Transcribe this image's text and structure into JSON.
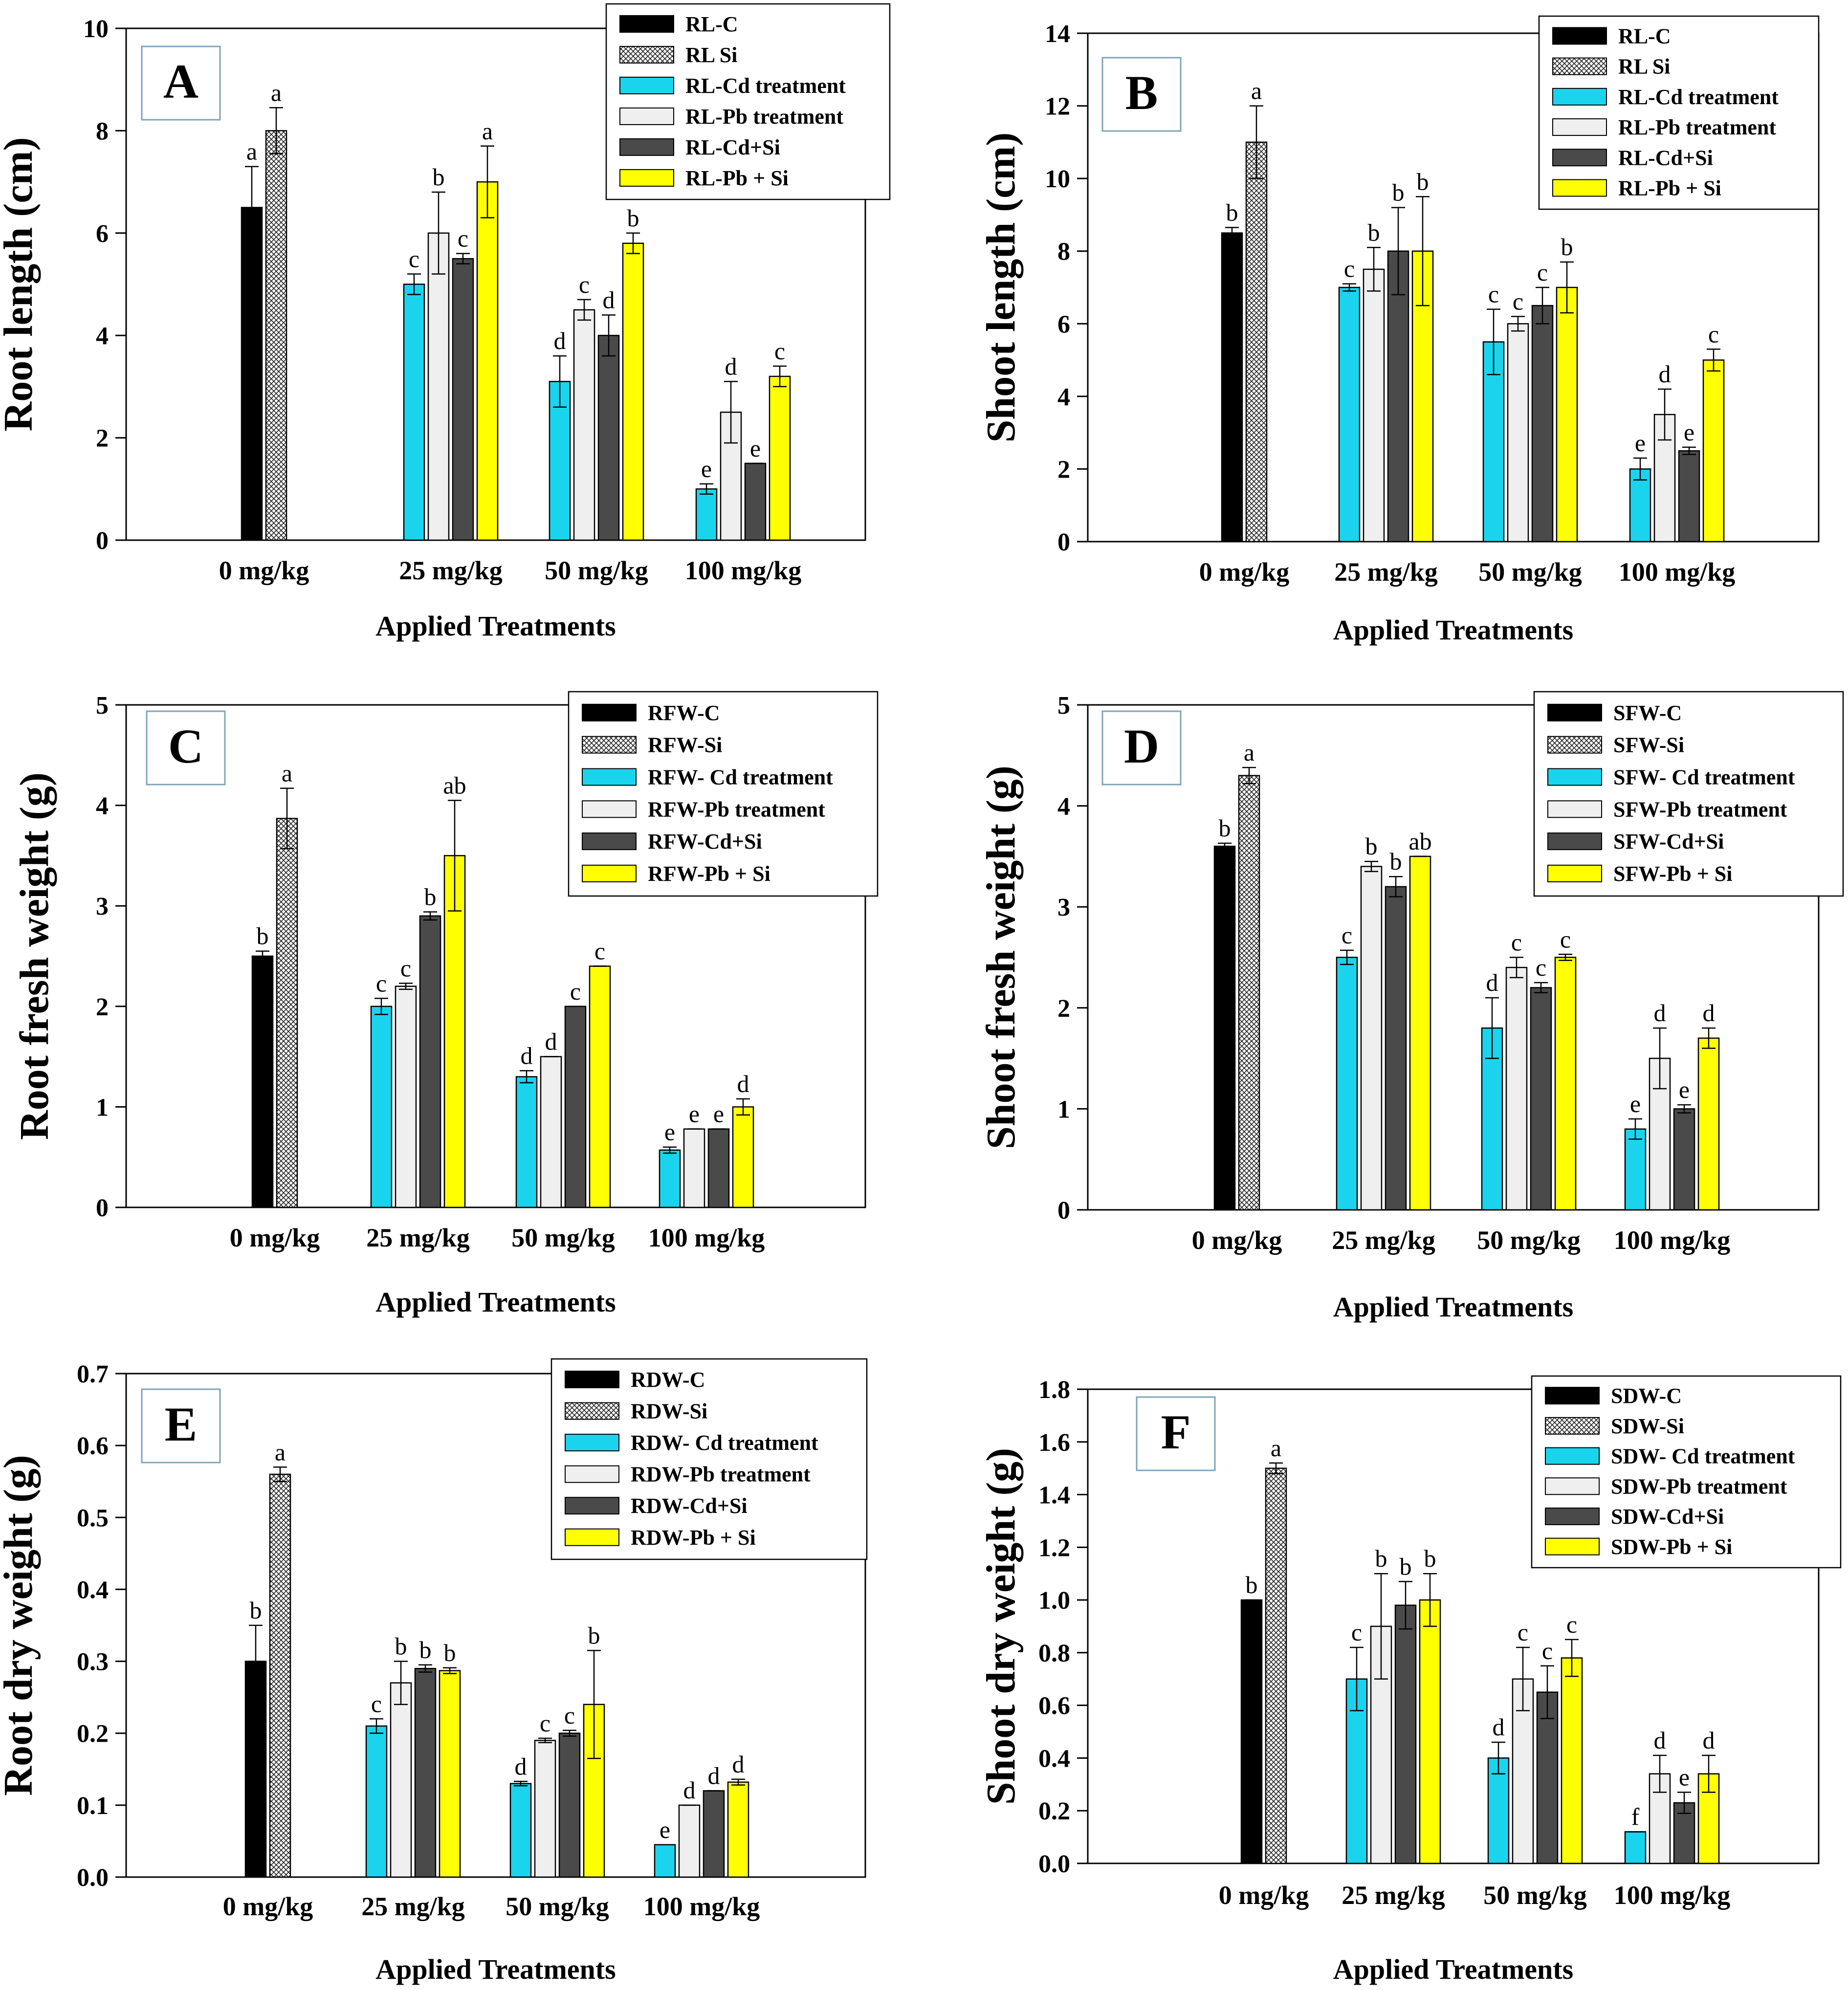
{
  "figure": {
    "x_axis_title": "Applied Treatments",
    "groups": [
      "0 mg/kg",
      "25 mg/kg",
      "50 mg/kg",
      "100 mg/kg"
    ],
    "series_colors": [
      "#000000",
      "pattern:crosshatch",
      "#1ad4ee",
      "#efefef",
      "#4a4a4a",
      "#ffff00"
    ]
  },
  "chart_data": [
    {
      "type": "bar",
      "panel_label": "A",
      "title": "",
      "xlabel": "Applied Treatments",
      "ylabel": "Root length (cm)",
      "ylim": [
        0,
        10
      ],
      "yticks": [
        "0",
        "2",
        "4",
        "6",
        "8",
        "10"
      ],
      "categories": [
        "0 mg/kg",
        "25 mg/kg",
        "50 mg/kg",
        "100 mg/kg"
      ],
      "series": [
        {
          "name": "RL-C",
          "values": [
            6.5,
            null,
            null,
            null
          ],
          "errors": [
            0.8,
            null,
            null,
            null
          ],
          "letters": [
            "a",
            null,
            null,
            null
          ]
        },
        {
          "name": "RL Si",
          "values": [
            8.0,
            null,
            null,
            null
          ],
          "errors": [
            0.45,
            null,
            null,
            null
          ],
          "letters": [
            "a",
            null,
            null,
            null
          ]
        },
        {
          "name": "RL-Cd treatment",
          "values": [
            null,
            5.0,
            3.1,
            1.0
          ],
          "errors": [
            null,
            0.2,
            0.5,
            0.1
          ],
          "letters": [
            null,
            "c",
            "d",
            "e"
          ]
        },
        {
          "name": "RL-Pb treatment",
          "values": [
            null,
            6.0,
            4.5,
            2.5
          ],
          "errors": [
            null,
            0.8,
            0.2,
            0.6
          ],
          "letters": [
            null,
            "b",
            "c",
            "d"
          ]
        },
        {
          "name": "RL-Cd+Si",
          "values": [
            null,
            5.5,
            4.0,
            1.5
          ],
          "errors": [
            null,
            0.1,
            0.4,
            0.0
          ],
          "letters": [
            null,
            "c",
            "d",
            "e"
          ]
        },
        {
          "name": "RL-Pb + Si",
          "values": [
            null,
            7.0,
            5.8,
            3.2
          ],
          "errors": [
            null,
            0.7,
            0.2,
            0.2
          ],
          "letters": [
            null,
            "a",
            "b",
            "c"
          ]
        }
      ]
    },
    {
      "type": "bar",
      "panel_label": "B",
      "title": "",
      "xlabel": "Applied Treatments",
      "ylabel": "Shoot length (cm)",
      "ylim": [
        0,
        14
      ],
      "yticks": [
        "0",
        "2",
        "4",
        "6",
        "8",
        "10",
        "12",
        "14"
      ],
      "categories": [
        "0 mg/kg",
        "25 mg/kg",
        "50 mg/kg",
        "100 mg/kg"
      ],
      "series": [
        {
          "name": "RL-C",
          "values": [
            8.5,
            null,
            null,
            null
          ],
          "errors": [
            0.15,
            null,
            null,
            null
          ],
          "letters": [
            "b",
            null,
            null,
            null
          ]
        },
        {
          "name": "RL Si",
          "values": [
            11.0,
            null,
            null,
            null
          ],
          "errors": [
            1.0,
            null,
            null,
            null
          ],
          "letters": [
            "a",
            null,
            null,
            null
          ]
        },
        {
          "name": "RL-Cd treatment",
          "values": [
            null,
            7.0,
            5.5,
            2.0
          ],
          "errors": [
            null,
            0.1,
            0.9,
            0.3
          ],
          "letters": [
            null,
            "c",
            "c",
            "e"
          ]
        },
        {
          "name": "RL-Pb treatment",
          "values": [
            null,
            7.5,
            6.0,
            3.5
          ],
          "errors": [
            null,
            0.6,
            0.2,
            0.7
          ],
          "letters": [
            null,
            "b",
            "c",
            "d"
          ]
        },
        {
          "name": "RL-Cd+Si",
          "values": [
            null,
            8.0,
            6.5,
            2.5
          ],
          "errors": [
            null,
            1.2,
            0.5,
            0.1
          ],
          "letters": [
            null,
            "b",
            "c",
            "e"
          ]
        },
        {
          "name": "RL-Pb + Si",
          "values": [
            null,
            8.0,
            7.0,
            5.0
          ],
          "errors": [
            null,
            1.5,
            0.7,
            0.3
          ],
          "letters": [
            null,
            "b",
            "b",
            "c"
          ]
        }
      ]
    },
    {
      "type": "bar",
      "panel_label": "C",
      "title": "",
      "xlabel": "Applied Treatments",
      "ylabel": "Root fresh weight (g)",
      "ylim": [
        0,
        5
      ],
      "yticks": [
        "0",
        "1",
        "2",
        "3",
        "4",
        "5"
      ],
      "categories": [
        "0 mg/kg",
        "25 mg/kg",
        "50 mg/kg",
        "100 mg/kg"
      ],
      "series": [
        {
          "name": "RFW-C",
          "values": [
            2.5,
            null,
            null,
            null
          ],
          "errors": [
            0.05,
            null,
            null,
            null
          ],
          "letters": [
            "b",
            null,
            null,
            null
          ]
        },
        {
          "name": "RFW-Si",
          "values": [
            3.87,
            null,
            null,
            null
          ],
          "errors": [
            0.3,
            null,
            null,
            null
          ],
          "letters": [
            "a",
            null,
            null,
            null
          ]
        },
        {
          "name": "RFW- Cd treatment",
          "values": [
            null,
            2.0,
            1.3,
            0.57
          ],
          "errors": [
            null,
            0.08,
            0.06,
            0.03
          ],
          "letters": [
            null,
            "c",
            "d",
            "e"
          ]
        },
        {
          "name": "RFW-Pb treatment",
          "values": [
            null,
            2.2,
            1.5,
            0.78
          ],
          "errors": [
            null,
            0.03,
            0.0,
            0.0
          ],
          "letters": [
            null,
            "c",
            "d",
            "e"
          ]
        },
        {
          "name": "RFW-Cd+Si",
          "values": [
            null,
            2.9,
            2.0,
            0.78
          ],
          "errors": [
            null,
            0.04,
            0.0,
            0.0
          ],
          "letters": [
            null,
            "b",
            "c",
            "e"
          ]
        },
        {
          "name": "RFW-Pb + Si",
          "values": [
            null,
            3.5,
            2.4,
            1.0
          ],
          "errors": [
            null,
            0.55,
            0.0,
            0.08
          ],
          "letters": [
            null,
            "ab",
            "c",
            "d"
          ]
        }
      ]
    },
    {
      "type": "bar",
      "panel_label": "D",
      "title": "",
      "xlabel": "Applied Treatments",
      "ylabel": "Shoot fresh weight (g)",
      "ylim": [
        0,
        5
      ],
      "yticks": [
        "0",
        "1",
        "2",
        "3",
        "4",
        "5"
      ],
      "categories": [
        "0 mg/kg",
        "25 mg/kg",
        "50 mg/kg",
        "100 mg/kg"
      ],
      "series": [
        {
          "name": "SFW-C",
          "values": [
            3.6,
            null,
            null,
            null
          ],
          "errors": [
            0.03,
            null,
            null,
            null
          ],
          "letters": [
            "b",
            null,
            null,
            null
          ]
        },
        {
          "name": "SFW-Si",
          "values": [
            4.3,
            null,
            null,
            null
          ],
          "errors": [
            0.08,
            null,
            null,
            null
          ],
          "letters": [
            "a",
            null,
            null,
            null
          ]
        },
        {
          "name": "SFW- Cd treatment",
          "values": [
            null,
            2.5,
            1.8,
            0.8
          ],
          "errors": [
            null,
            0.07,
            0.3,
            0.1
          ],
          "letters": [
            null,
            "c",
            "d",
            "e"
          ]
        },
        {
          "name": "SFW-Pb treatment",
          "values": [
            null,
            3.4,
            2.4,
            1.5
          ],
          "errors": [
            null,
            0.05,
            0.1,
            0.3
          ],
          "letters": [
            null,
            "b",
            "c",
            "d"
          ]
        },
        {
          "name": "SFW-Cd+Si",
          "values": [
            null,
            3.2,
            2.2,
            1.0
          ],
          "errors": [
            null,
            0.1,
            0.05,
            0.04
          ],
          "letters": [
            null,
            "b",
            "c",
            "e"
          ]
        },
        {
          "name": "SFW-Pb + Si",
          "values": [
            null,
            3.5,
            2.5,
            1.7
          ],
          "errors": [
            null,
            0.0,
            0.03,
            0.1
          ],
          "letters": [
            null,
            "ab",
            "c",
            "d"
          ]
        }
      ]
    },
    {
      "type": "bar",
      "panel_label": "E",
      "title": "",
      "xlabel": "Applied Treatments",
      "ylabel": "Root dry weight (g)",
      "ylim": [
        0,
        0.7
      ],
      "yticks": [
        "0.0",
        "0.1",
        "0.2",
        "0.3",
        "0.4",
        "0.5",
        "0.6",
        "0.7"
      ],
      "categories": [
        "0 mg/kg",
        "25 mg/kg",
        "50 mg/kg",
        "100 mg/kg"
      ],
      "series": [
        {
          "name": "RDW-C",
          "values": [
            0.3,
            null,
            null,
            null
          ],
          "errors": [
            0.05,
            null,
            null,
            null
          ],
          "letters": [
            "b",
            null,
            null,
            null
          ]
        },
        {
          "name": "RDW-Si",
          "values": [
            0.56,
            null,
            null,
            null
          ],
          "errors": [
            0.01,
            null,
            null,
            null
          ],
          "letters": [
            "a",
            null,
            null,
            null
          ]
        },
        {
          "name": "RDW- Cd treatment",
          "values": [
            null,
            0.21,
            0.13,
            0.045
          ],
          "errors": [
            null,
            0.01,
            0.003,
            0.0
          ],
          "letters": [
            null,
            "c",
            "d",
            "e"
          ]
        },
        {
          "name": "RDW-Pb treatment",
          "values": [
            null,
            0.27,
            0.19,
            0.1
          ],
          "errors": [
            null,
            0.03,
            0.003,
            0.0
          ],
          "letters": [
            null,
            "b",
            "c",
            "d"
          ]
        },
        {
          "name": "RDW-Cd+Si",
          "values": [
            null,
            0.29,
            0.2,
            0.12
          ],
          "errors": [
            null,
            0.005,
            0.004,
            0.0
          ],
          "letters": [
            null,
            "b",
            "c",
            "d"
          ]
        },
        {
          "name": "RDW-Pb + Si",
          "values": [
            null,
            0.287,
            0.24,
            0.132
          ],
          "errors": [
            null,
            0.004,
            0.075,
            0.004
          ],
          "letters": [
            null,
            "b",
            "b",
            "d"
          ]
        }
      ]
    },
    {
      "type": "bar",
      "panel_label": "F",
      "title": "",
      "xlabel": "Applied Treatments",
      "ylabel": "Shoot dry weight (g)",
      "ylim": [
        0,
        1.8
      ],
      "yticks": [
        "0.0",
        "0.2",
        "0.4",
        "0.6",
        "0.8",
        "1.0",
        "1.2",
        "1.4",
        "1.6",
        "1.8"
      ],
      "categories": [
        "0 mg/kg",
        "25 mg/kg",
        "50 mg/kg",
        "100 mg/kg"
      ],
      "series": [
        {
          "name": "SDW-C",
          "values": [
            1.0,
            null,
            null,
            null
          ],
          "errors": [
            0.0,
            null,
            null,
            null
          ],
          "letters": [
            "b",
            null,
            null,
            null
          ]
        },
        {
          "name": "SDW-Si",
          "values": [
            1.5,
            null,
            null,
            null
          ],
          "errors": [
            0.02,
            null,
            null,
            null
          ],
          "letters": [
            "a",
            null,
            null,
            null
          ]
        },
        {
          "name": "SDW- Cd treatment",
          "values": [
            null,
            0.7,
            0.4,
            0.12
          ],
          "errors": [
            null,
            0.12,
            0.06,
            0.0
          ],
          "letters": [
            null,
            "c",
            "d",
            "f"
          ]
        },
        {
          "name": "SDW-Pb treatment",
          "values": [
            null,
            0.9,
            0.7,
            0.34
          ],
          "errors": [
            null,
            0.2,
            0.12,
            0.07
          ],
          "letters": [
            null,
            "b",
            "c",
            "d"
          ]
        },
        {
          "name": "SDW-Cd+Si",
          "values": [
            null,
            0.98,
            0.65,
            0.23
          ],
          "errors": [
            null,
            0.09,
            0.1,
            0.04
          ],
          "letters": [
            null,
            "b",
            "c",
            "e"
          ]
        },
        {
          "name": "SDW-Pb + Si",
          "values": [
            null,
            1.0,
            0.78,
            0.34
          ],
          "errors": [
            null,
            0.1,
            0.07,
            0.07
          ],
          "letters": [
            null,
            "b",
            "c",
            "d"
          ]
        }
      ]
    }
  ]
}
